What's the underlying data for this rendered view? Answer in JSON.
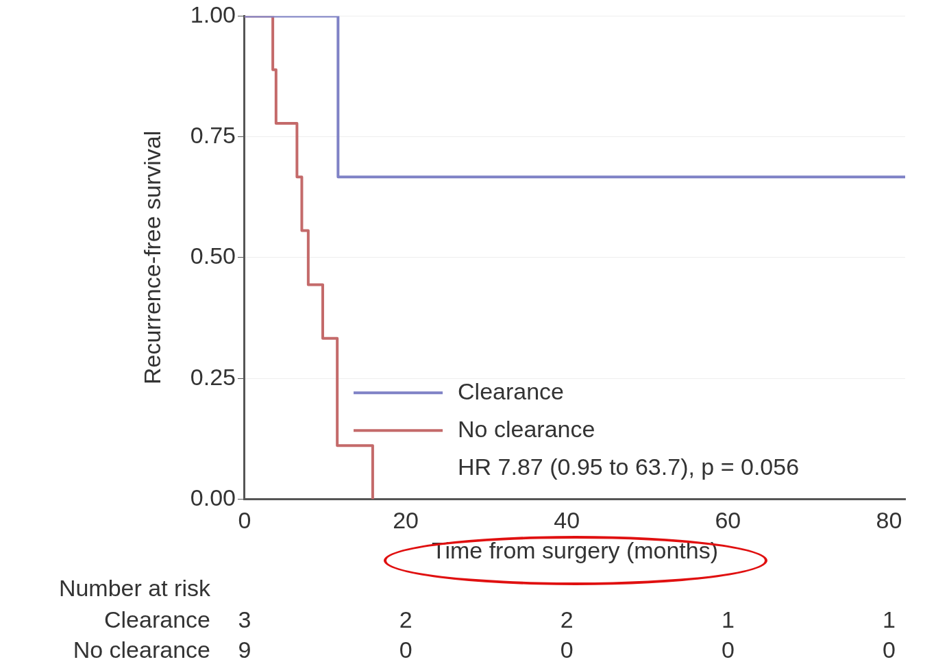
{
  "chart_data": {
    "type": "step",
    "xlabel": "Time from surgery (months)",
    "ylabel": "Recurrence-free survival",
    "xlim": [
      0,
      82
    ],
    "xticks": [
      0,
      20,
      40,
      60,
      80
    ],
    "ylim": [
      0,
      1
    ],
    "yticks": [
      {
        "value": 0,
        "label": "0.00"
      },
      {
        "value": 0.25,
        "label": "0.25"
      },
      {
        "value": 0.5,
        "label": "0.50"
      },
      {
        "value": 0.75,
        "label": "0.75"
      },
      {
        "value": 1,
        "label": "1.00"
      }
    ],
    "grid": "y",
    "legend": "bottom",
    "series": [
      {
        "name": "Clearance",
        "color": "#7f82c6",
        "x": [
          0,
          11.6,
          11.6,
          82
        ],
        "values": [
          1,
          1,
          0.667,
          0.667
        ]
      },
      {
        "name": "No clearance",
        "color": "#c46a6a",
        "x": [
          0,
          3.5,
          3.5,
          3.9,
          3.9,
          6.5,
          6.5,
          7.1,
          7.1,
          7.9,
          7.9,
          9.7,
          9.7,
          11.5,
          11.5,
          15.9,
          15.9
        ],
        "values": [
          1,
          1,
          0.889,
          0.889,
          0.778,
          0.778,
          0.667,
          0.667,
          0.556,
          0.556,
          0.444,
          0.444,
          0.333,
          0.333,
          0.111,
          0.111,
          0
        ]
      }
    ],
    "annotations": [
      "HR 7.87 (0.95 to 63.7), p = 0.056",
      "Number at risk",
      "Clearance",
      "3",
      "2",
      "2",
      "1",
      "1",
      "No clearance",
      "9",
      "0",
      "0",
      "0",
      "0"
    ]
  }
}
